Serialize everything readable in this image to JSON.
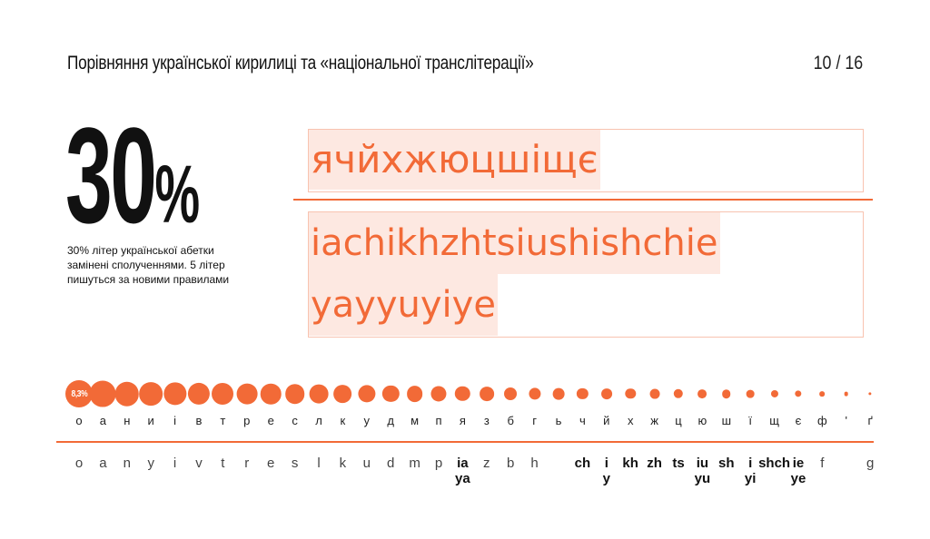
{
  "header": {
    "title": "Порівняння української кирилиці та «національної транслітерації»",
    "page": "10 / 16"
  },
  "stat": {
    "value": "30",
    "unit": "%",
    "caption": "30% літер української абетки замінені сполученнями. 5 літер пишуться за новими правилами"
  },
  "comparison": {
    "cyrillic": "ячйхжюцшіщє",
    "latin_line1": "iachikhzhtsiushishchie",
    "latin_line2": "yayyuyiye"
  },
  "frequency": {
    "top_label": "8,3%",
    "accent_color": "#f26a37",
    "highlight_color": "#fde8e1",
    "letters": [
      {
        "cyr": "о",
        "lat": "o",
        "freq": 8.3
      },
      {
        "cyr": "а",
        "lat": "a",
        "freq": 7.7
      },
      {
        "cyr": "н",
        "lat": "n",
        "freq": 6.5
      },
      {
        "cyr": "и",
        "lat": "y",
        "freq": 6.1
      },
      {
        "cyr": "і",
        "lat": "i",
        "freq": 5.9
      },
      {
        "cyr": "в",
        "lat": "v",
        "freq": 5.4
      },
      {
        "cyr": "т",
        "lat": "t",
        "freq": 5.3
      },
      {
        "cyr": "р",
        "lat": "r",
        "freq": 4.8
      },
      {
        "cyr": "е",
        "lat": "e",
        "freq": 4.7
      },
      {
        "cyr": "с",
        "lat": "s",
        "freq": 4.3
      },
      {
        "cyr": "л",
        "lat": "l",
        "freq": 4.0
      },
      {
        "cyr": "к",
        "lat": "k",
        "freq": 3.6
      },
      {
        "cyr": "у",
        "lat": "u",
        "freq": 3.4
      },
      {
        "cyr": "д",
        "lat": "d",
        "freq": 3.1
      },
      {
        "cyr": "м",
        "lat": "m",
        "freq": 2.9
      },
      {
        "cyr": "п",
        "lat": "p",
        "freq": 2.7
      },
      {
        "cyr": "я",
        "lat": "ia",
        "lat2": "ya",
        "bold": true,
        "freq": 2.5
      },
      {
        "cyr": "з",
        "lat": "z",
        "freq": 2.3
      },
      {
        "cyr": "б",
        "lat": "b",
        "freq": 1.8
      },
      {
        "cyr": "г",
        "lat": "h",
        "freq": 1.6
      },
      {
        "cyr": "ь",
        "lat": "",
        "freq": 1.5
      },
      {
        "cyr": "ч",
        "lat": "ch",
        "bold": true,
        "freq": 1.4
      },
      {
        "cyr": "й",
        "lat": "i",
        "lat2": "y",
        "bold": true,
        "freq": 1.3
      },
      {
        "cyr": "х",
        "lat": "kh",
        "bold": true,
        "freq": 1.2
      },
      {
        "cyr": "ж",
        "lat": "zh",
        "bold": true,
        "freq": 1.1
      },
      {
        "cyr": "ц",
        "lat": "ts",
        "bold": true,
        "freq": 1.0
      },
      {
        "cyr": "ю",
        "lat": "iu",
        "lat2": "yu",
        "bold": true,
        "freq": 0.9
      },
      {
        "cyr": "ш",
        "lat": "sh",
        "bold": true,
        "freq": 0.85
      },
      {
        "cyr": "ї",
        "lat": "i",
        "lat2": "yi",
        "bold": true,
        "freq": 0.7
      },
      {
        "cyr": "щ",
        "lat": "shch",
        "bold": true,
        "freq": 0.6
      },
      {
        "cyr": "є",
        "lat": "ie",
        "lat2": "ye",
        "bold": true,
        "freq": 0.5
      },
      {
        "cyr": "ф",
        "lat": "f",
        "freq": 0.3
      },
      {
        "cyr": "'",
        "lat": "",
        "freq": 0.2
      },
      {
        "cyr": "ґ",
        "lat": "g",
        "freq": 0.1
      }
    ]
  }
}
